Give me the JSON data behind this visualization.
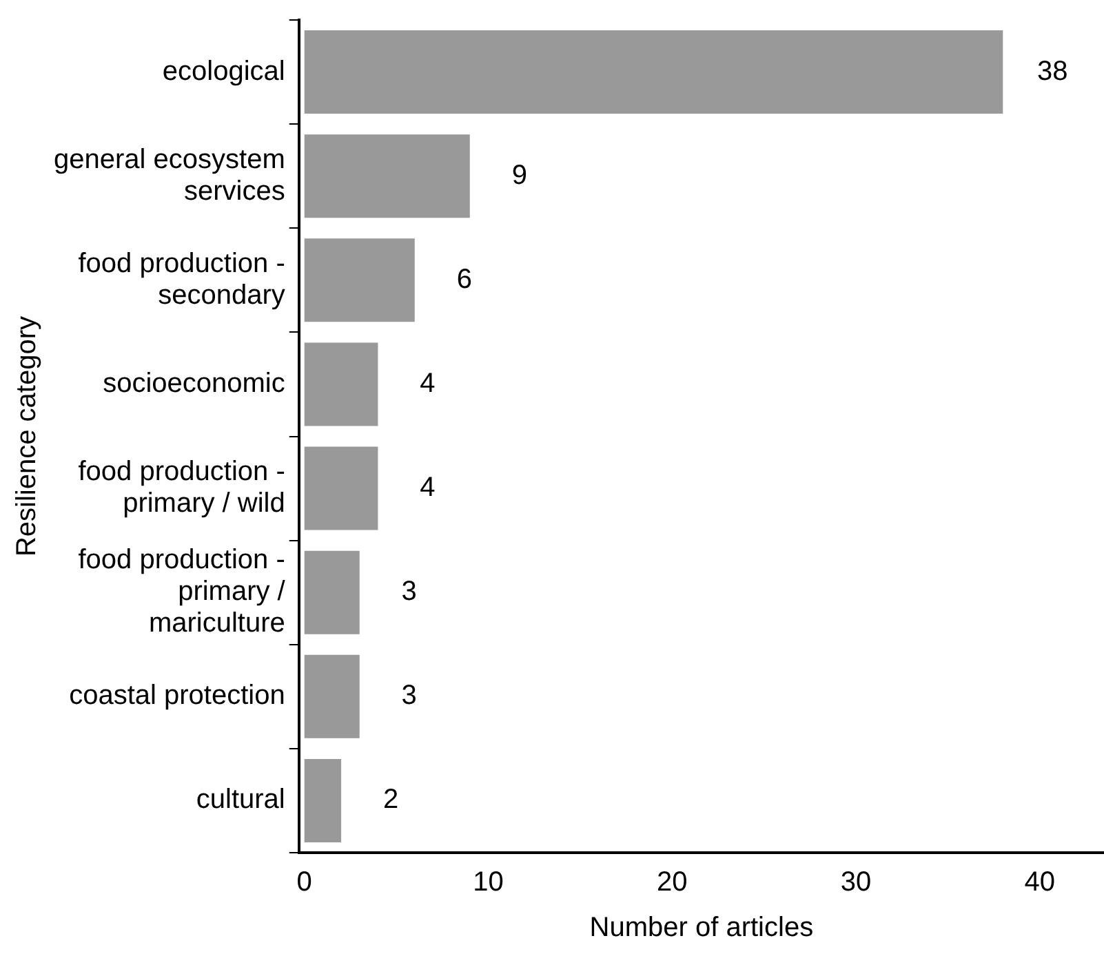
{
  "chart_data": {
    "type": "bar",
    "orientation": "horizontal",
    "categories": [
      "ecological",
      "general ecosystem services",
      "food production - secondary",
      "socioeconomic",
      "food production - primary / wild",
      "food production - primary / mariculture",
      "coastal protection",
      "cultural"
    ],
    "values": [
      38,
      9,
      6,
      4,
      4,
      3,
      3,
      2
    ],
    "color": "#999999",
    "xlim": [
      -0.3,
      43.5
    ],
    "xticks": [
      0,
      10,
      20,
      30,
      40
    ],
    "xlabel": "Number of articles",
    "ylabel": "Resilience category",
    "data_labels": true,
    "grid": false,
    "legend": false
  }
}
